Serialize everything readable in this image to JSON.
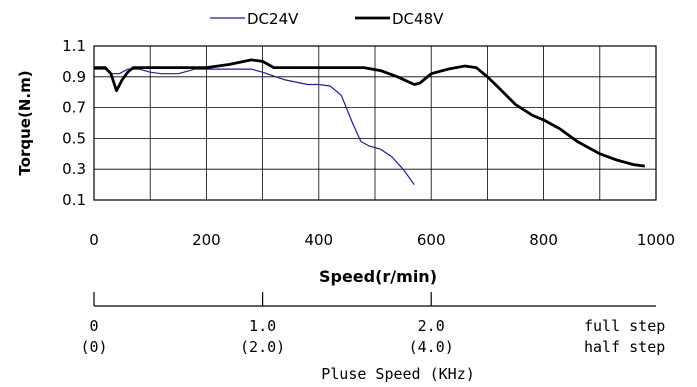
{
  "chart_data": {
    "type": "line",
    "xlabel": "Speed(r/min)",
    "ylabel": "Torque(N.m)",
    "xlim": [
      0,
      1000
    ],
    "ylim": [
      0.1,
      1.1
    ],
    "x_ticks": [
      "0",
      "200",
      "400",
      "600",
      "800",
      "1000"
    ],
    "y_ticks": [
      "0.1",
      "0.3",
      "0.5",
      "0.7",
      "0.9",
      "1.1"
    ],
    "grid": true,
    "legend_position": "top",
    "series": [
      {
        "name": "DC24V",
        "color": "#1f1f8f",
        "points": [
          [
            0,
            0.95
          ],
          [
            20,
            0.95
          ],
          [
            30,
            0.92
          ],
          [
            45,
            0.92
          ],
          [
            60,
            0.95
          ],
          [
            80,
            0.95
          ],
          [
            100,
            0.93
          ],
          [
            120,
            0.92
          ],
          [
            150,
            0.92
          ],
          [
            180,
            0.95
          ],
          [
            200,
            0.95
          ],
          [
            260,
            0.95
          ],
          [
            280,
            0.95
          ],
          [
            300,
            0.93
          ],
          [
            340,
            0.88
          ],
          [
            380,
            0.85
          ],
          [
            400,
            0.85
          ],
          [
            420,
            0.84
          ],
          [
            440,
            0.78
          ],
          [
            460,
            0.6
          ],
          [
            475,
            0.48
          ],
          [
            490,
            0.45
          ],
          [
            510,
            0.43
          ],
          [
            530,
            0.38
          ],
          [
            550,
            0.3
          ],
          [
            570,
            0.2
          ]
        ]
      },
      {
        "name": "DC48V",
        "color": "#000000",
        "points": [
          [
            0,
            0.96
          ],
          [
            20,
            0.96
          ],
          [
            30,
            0.92
          ],
          [
            40,
            0.81
          ],
          [
            50,
            0.88
          ],
          [
            60,
            0.93
          ],
          [
            70,
            0.96
          ],
          [
            100,
            0.96
          ],
          [
            200,
            0.96
          ],
          [
            240,
            0.98
          ],
          [
            280,
            1.01
          ],
          [
            300,
            1.0
          ],
          [
            320,
            0.96
          ],
          [
            400,
            0.96
          ],
          [
            450,
            0.96
          ],
          [
            480,
            0.96
          ],
          [
            510,
            0.94
          ],
          [
            540,
            0.9
          ],
          [
            570,
            0.85
          ],
          [
            580,
            0.86
          ],
          [
            600,
            0.92
          ],
          [
            630,
            0.95
          ],
          [
            660,
            0.97
          ],
          [
            680,
            0.96
          ],
          [
            700,
            0.9
          ],
          [
            720,
            0.83
          ],
          [
            750,
            0.72
          ],
          [
            780,
            0.65
          ],
          [
            800,
            0.62
          ],
          [
            830,
            0.56
          ],
          [
            860,
            0.48
          ],
          [
            900,
            0.4
          ],
          [
            930,
            0.36
          ],
          [
            960,
            0.33
          ],
          [
            980,
            0.32
          ]
        ]
      }
    ]
  },
  "pulse_axis": {
    "title": "Pluse Speed (KHz)",
    "row_labels": [
      "full step",
      "half step"
    ],
    "ticks": [
      {
        "speed": 0,
        "full": "0",
        "half": "(0)"
      },
      {
        "speed": 300,
        "full": "1.0",
        "half": "(2.0)"
      },
      {
        "speed": 600,
        "full": "2.0",
        "half": "(4.0)"
      }
    ]
  }
}
